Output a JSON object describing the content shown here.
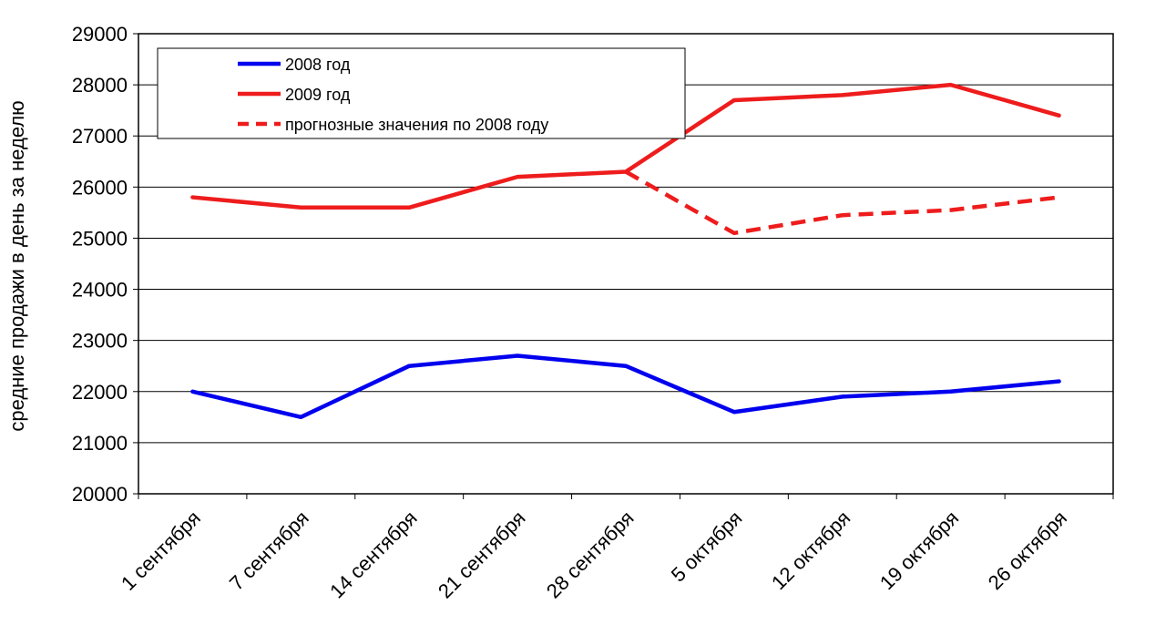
{
  "chart_data": {
    "type": "line",
    "categories": [
      "1 сентября",
      "7 сентября",
      "14 сентября",
      "21 сентября",
      "28 сентября",
      "5 октября",
      "12 октября",
      "19 октября",
      "26 октября"
    ],
    "ylabel": "средние продажи в день за неделю",
    "ylim": [
      20000,
      29000
    ],
    "yticks": [
      20000,
      21000,
      22000,
      23000,
      24000,
      25000,
      26000,
      27000,
      28000,
      29000
    ],
    "grid": true,
    "legend_position": "top-left",
    "series": [
      {
        "name": "2008 год",
        "color": "#0000ee",
        "style": "solid",
        "values": [
          22000,
          21500,
          22500,
          22700,
          22500,
          21600,
          21900,
          22000,
          22200
        ]
      },
      {
        "name": "2009 год",
        "color": "#ee1c1c",
        "style": "solid",
        "values": [
          25800,
          25600,
          25600,
          26200,
          26300,
          27700,
          27800,
          28000,
          27400
        ]
      },
      {
        "name": "прогнозные значения по 2008 году",
        "color": "#ee1c1c",
        "style": "dashed",
        "values": [
          null,
          null,
          null,
          null,
          26300,
          25100,
          25450,
          25550,
          25800
        ]
      }
    ]
  }
}
